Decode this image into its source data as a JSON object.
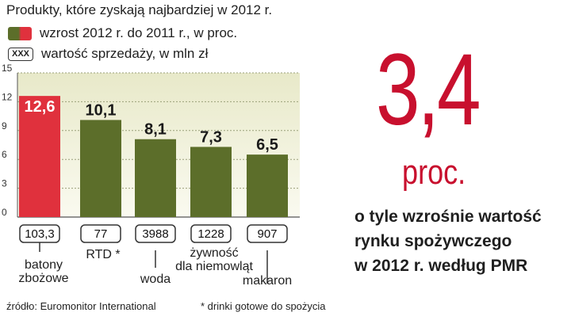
{
  "chart_data": {
    "type": "bar",
    "title": "Produkty, które zyskają najbardziej w 2012 r.",
    "legend": [
      {
        "label": "wzrost 2012 r. do 2011 r., w proc.",
        "kind": "bar"
      },
      {
        "label": "wartość sprzedaży, w mln zł",
        "kind": "box",
        "box_text": "XXX"
      }
    ],
    "categories": [
      "batony zbożowe",
      "RTD *",
      "woda",
      "żywność dla niemowląt",
      "makaron"
    ],
    "category_lines": [
      [
        "batony",
        "zbożowe"
      ],
      [
        "RTD *"
      ],
      [
        "woda"
      ],
      [
        "żywność",
        "dla niemowląt"
      ],
      [
        "makaron"
      ]
    ],
    "values": [
      12.6,
      10.1,
      8.1,
      7.3,
      6.5
    ],
    "value_labels": [
      "12,6",
      "10,1",
      "8,1",
      "7,3",
      "6,5"
    ],
    "sales_values": [
      "103,3",
      "77",
      "3988",
      "1228",
      "907"
    ],
    "y_ticks": [
      0,
      3,
      6,
      9,
      12,
      15
    ],
    "ylim": [
      0,
      15
    ],
    "highlight_index": 0,
    "colors": {
      "highlight": "#e0313d",
      "bar": "#5c6e2a",
      "value_label_highlight": "#ffffff",
      "value_label": "#1a1a1a",
      "plot_bg_top": "#e8e9c9",
      "plot_bg_bottom": "#fafaf0",
      "grid": "#9aa07a"
    },
    "grid": true
  },
  "notes": {
    "source": "źródło: Euromonitor International",
    "footnote": "* drinki gotowe do spożycia"
  },
  "headline": {
    "number": "3,4",
    "unit": "proc.",
    "caption_lines": [
      "o tyle wzrośnie wartość",
      "rynku spożywczego",
      "w 2012 r. według PMR"
    ]
  }
}
